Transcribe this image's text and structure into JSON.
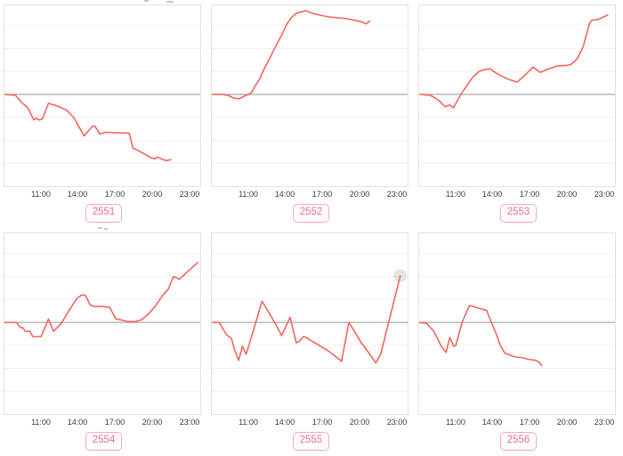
{
  "colors": {
    "line": "#f4655e",
    "zero_line": "#a9a9a9",
    "gridline": "#f1f1f1",
    "panel_border": "#e2e2e2",
    "tick_text": "#3c3c3c",
    "code_text": "#ee6d9b",
    "code_border": "#f6a9c4",
    "end_marker": "rgba(160,160,160,0.28)"
  },
  "chart_data": {
    "type": "line",
    "title": "",
    "x_tick_labels": [
      "11:00",
      "14:00",
      "17:00",
      "20:00",
      "23:00"
    ],
    "x_range_hours": [
      8,
      24
    ],
    "baseline": 0,
    "y_axis": "unlabeled relative scale (offset from baseline, plot px units)",
    "y_range": [
      -104,
      101
    ],
    "grid": "horizontal light gridlines every 26 units, darker line at baseline 0",
    "legend": "none",
    "charts": [
      {
        "code": "2551",
        "points": [
          [
            8,
            0
          ],
          [
            8.9,
            -1
          ],
          [
            9.4,
            -9
          ],
          [
            9.9,
            -15
          ],
          [
            10.4,
            -29
          ],
          [
            10.6,
            -27
          ],
          [
            10.8,
            -29
          ],
          [
            11.1,
            -28
          ],
          [
            11.6,
            -10
          ],
          [
            11.8,
            -11
          ],
          [
            12.3,
            -13
          ],
          [
            13.1,
            -18
          ],
          [
            13.7,
            -27
          ],
          [
            14.5,
            -47
          ],
          [
            15.2,
            -36
          ],
          [
            15.4,
            -36
          ],
          [
            15.8,
            -45
          ],
          [
            16.2,
            -43
          ],
          [
            18.2,
            -44
          ],
          [
            18.5,
            -61
          ],
          [
            19,
            -64
          ],
          [
            20,
            -72
          ],
          [
            20.3,
            -73
          ],
          [
            20.5,
            -71
          ],
          [
            20.8,
            -73
          ],
          [
            21.2,
            -75
          ],
          [
            21.6,
            -74
          ]
        ]
      },
      {
        "code": "2552",
        "points": [
          [
            8,
            0
          ],
          [
            8.8,
            0
          ],
          [
            9.3,
            -1
          ],
          [
            9.8,
            -4
          ],
          [
            10.2,
            -5
          ],
          [
            10.5,
            -3
          ],
          [
            10.8,
            -1
          ],
          [
            11,
            0
          ],
          [
            11.3,
            3
          ],
          [
            11.5,
            9
          ],
          [
            11.9,
            17
          ],
          [
            12.2,
            27
          ],
          [
            12.7,
            40
          ],
          [
            13.2,
            54
          ],
          [
            13.7,
            67
          ],
          [
            14.1,
            79
          ],
          [
            14.5,
            87
          ],
          [
            14.9,
            92
          ],
          [
            15.4,
            94
          ],
          [
            15.7,
            95
          ],
          [
            16.2,
            92
          ],
          [
            16.8,
            90
          ],
          [
            17.5,
            88
          ],
          [
            18.2,
            87
          ],
          [
            19,
            86
          ],
          [
            19.7,
            84
          ],
          [
            20.3,
            82
          ],
          [
            20.6,
            80
          ],
          [
            20.9,
            83
          ]
        ]
      },
      {
        "code": "2553",
        "points": [
          [
            8,
            0
          ],
          [
            8.9,
            -1
          ],
          [
            9.3,
            -4
          ],
          [
            9.7,
            -8
          ],
          [
            10.1,
            -14
          ],
          [
            10.5,
            -12
          ],
          [
            10.8,
            -15
          ],
          [
            11.4,
            0
          ],
          [
            11.9,
            10
          ],
          [
            12.4,
            20
          ],
          [
            12.9,
            26
          ],
          [
            13.3,
            28
          ],
          [
            13.8,
            29
          ],
          [
            14.2,
            25
          ],
          [
            14.7,
            21
          ],
          [
            15.3,
            17
          ],
          [
            16,
            14
          ],
          [
            16.6,
            21
          ],
          [
            17.3,
            31
          ],
          [
            17.9,
            25
          ],
          [
            18.4,
            28
          ],
          [
            19.2,
            32
          ],
          [
            20.1,
            33
          ],
          [
            20.4,
            34
          ],
          [
            20.9,
            40
          ],
          [
            21.4,
            54
          ],
          [
            21.9,
            80
          ],
          [
            22.1,
            84
          ],
          [
            22.6,
            85
          ],
          [
            23.4,
            90
          ]
        ]
      },
      {
        "code": "2554",
        "points": [
          [
            8,
            0
          ],
          [
            9,
            0
          ],
          [
            9.3,
            -6
          ],
          [
            9.5,
            -6
          ],
          [
            9.7,
            -10
          ],
          [
            10.1,
            -10
          ],
          [
            10.3,
            -16
          ],
          [
            11,
            -16
          ],
          [
            11.6,
            4
          ],
          [
            12,
            -10
          ],
          [
            12.6,
            -2
          ],
          [
            13.4,
            16
          ],
          [
            13.9,
            27
          ],
          [
            14.3,
            31
          ],
          [
            14.6,
            31
          ],
          [
            15,
            20
          ],
          [
            15.3,
            18
          ],
          [
            16.1,
            18
          ],
          [
            16.6,
            17
          ],
          [
            17.1,
            4
          ],
          [
            17.5,
            3
          ],
          [
            18.1,
            1
          ],
          [
            18.7,
            1
          ],
          [
            19.2,
            3
          ],
          [
            19.8,
            10
          ],
          [
            20.3,
            18
          ],
          [
            20.9,
            30
          ],
          [
            21.4,
            38
          ],
          [
            21.8,
            52
          ],
          [
            22.3,
            49
          ],
          [
            23,
            58
          ],
          [
            23.8,
            68
          ]
        ]
      },
      {
        "code": "2555",
        "end_marker": true,
        "points": [
          [
            8,
            0
          ],
          [
            8.6,
            0
          ],
          [
            9.2,
            -14
          ],
          [
            9.6,
            -18
          ],
          [
            9.9,
            -33
          ],
          [
            10.2,
            -43
          ],
          [
            10.5,
            -27
          ],
          [
            10.8,
            -36
          ],
          [
            11.6,
            0
          ],
          [
            12.1,
            24
          ],
          [
            12.8,
            8
          ],
          [
            13.3,
            -4
          ],
          [
            13.7,
            -15
          ],
          [
            14.4,
            6
          ],
          [
            14.9,
            -23
          ],
          [
            15.1,
            -22
          ],
          [
            15.5,
            -16
          ],
          [
            15.7,
            -17
          ],
          [
            16.4,
            -23
          ],
          [
            17,
            -28
          ],
          [
            17.6,
            -33
          ],
          [
            18.6,
            -44
          ],
          [
            19.2,
            0
          ],
          [
            19.7,
            -11
          ],
          [
            20.2,
            -23
          ],
          [
            20.5,
            -28
          ],
          [
            21.4,
            -46
          ],
          [
            21.8,
            -36
          ],
          [
            23.4,
            53
          ]
        ]
      },
      {
        "code": "2556",
        "points": [
          [
            8,
            0
          ],
          [
            8.6,
            -1
          ],
          [
            9.2,
            -10
          ],
          [
            9.7,
            -24
          ],
          [
            9.8,
            -27
          ],
          [
            10.1,
            -32
          ],
          [
            10.2,
            -34
          ],
          [
            10.5,
            -17
          ],
          [
            10.7,
            -23
          ],
          [
            10.8,
            -27
          ],
          [
            11,
            -26
          ],
          [
            11.5,
            0
          ],
          [
            12.1,
            19
          ],
          [
            12.2,
            19
          ],
          [
            13.4,
            14
          ],
          [
            13.5,
            14
          ],
          [
            13.9,
            0
          ],
          [
            14.3,
            -13
          ],
          [
            14.6,
            -25
          ],
          [
            15,
            -35
          ],
          [
            15.4,
            -37
          ],
          [
            15.8,
            -39
          ],
          [
            16.4,
            -40
          ],
          [
            17,
            -42
          ],
          [
            17.5,
            -43
          ],
          [
            17.8,
            -45
          ],
          [
            18,
            -49
          ]
        ]
      }
    ]
  }
}
